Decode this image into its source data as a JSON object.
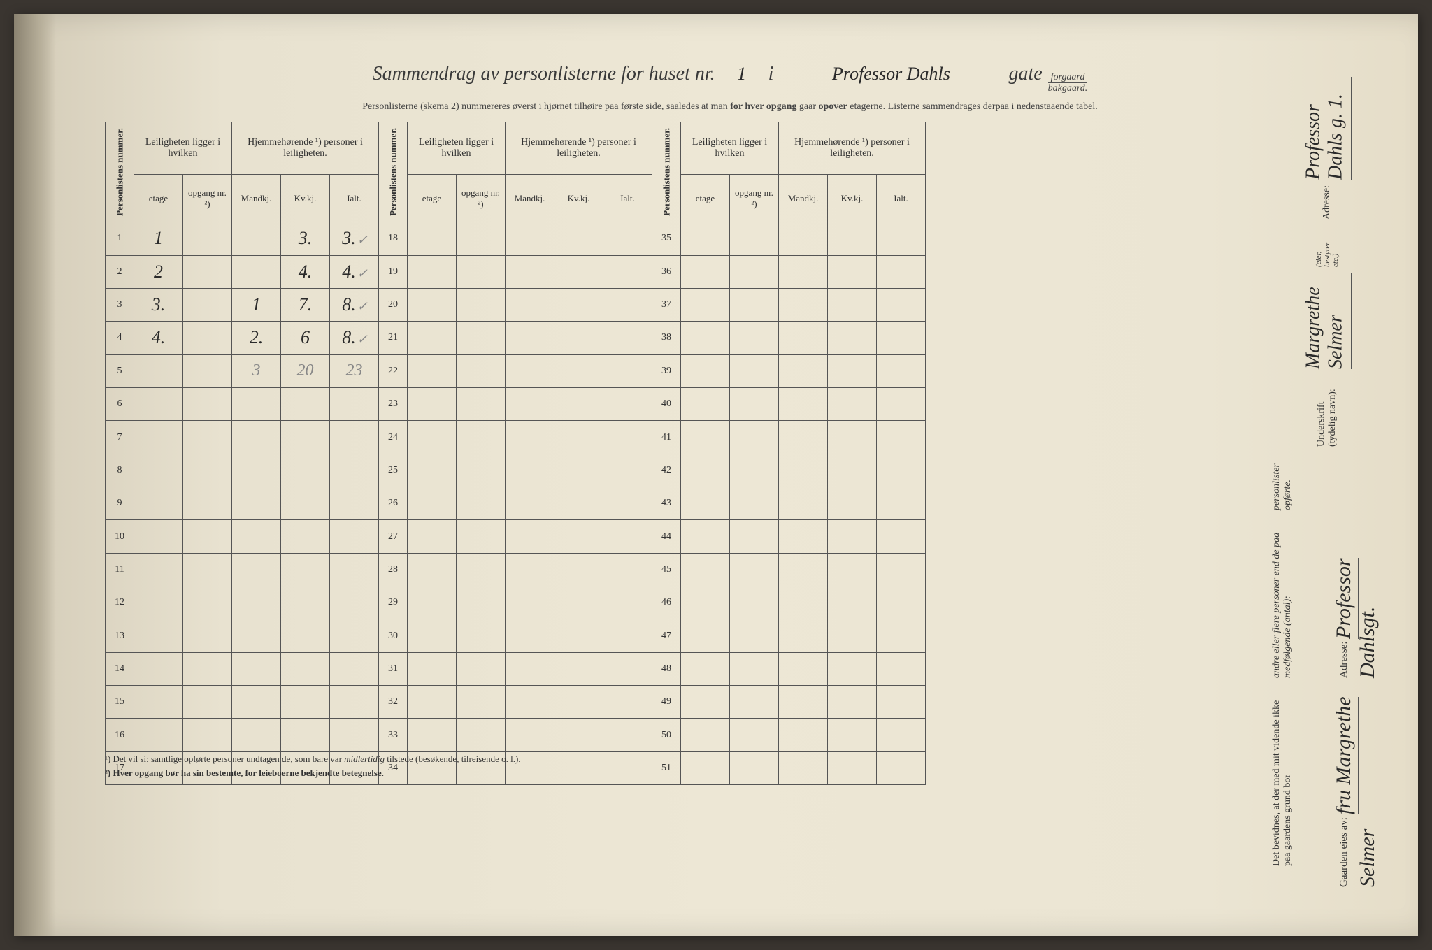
{
  "header": {
    "title_prefix": "Sammendrag av personlisterne for huset nr.",
    "house_nr": "1",
    "i": "i",
    "street_name": "Professor Dahls",
    "gate": "gate",
    "forgaard": "forgaard",
    "bakgaard": "bakgaard.",
    "subtitle_a": "Personlisterne (skema 2) nummereres øverst i hjørnet tilhøire paa første side, saaledes at man ",
    "subtitle_b": "for hver opgang",
    "subtitle_c": " gaar ",
    "subtitle_d": "opover",
    "subtitle_e": " etagerne.  Listerne sammendrages derpaa i nedenstaaende tabel."
  },
  "table_headers": {
    "personlistens": "Personlistens nummer.",
    "leiligheten": "Leiligheten ligger i hvilken",
    "hjemmehorende": "Hjemmehørende ¹) personer i leiligheten.",
    "etage": "etage",
    "opgang": "opgang nr. ²)",
    "mandkj": "Mandkj.",
    "kvkj": "Kv.kj.",
    "ialt": "Ialt."
  },
  "rows_block1": [
    {
      "n": "1",
      "etage": "1",
      "opgang": "",
      "m": "",
      "k": "3.",
      "i": "3.",
      "chk": "✓"
    },
    {
      "n": "2",
      "etage": "2",
      "opgang": "",
      "m": "",
      "k": "4.",
      "i": "4.",
      "chk": "✓"
    },
    {
      "n": "3",
      "etage": "3.",
      "opgang": "",
      "m": "1",
      "k": "7.",
      "i": "8.",
      "chk": "✓"
    },
    {
      "n": "4",
      "etage": "4.",
      "opgang": "",
      "m": "2.",
      "k": "6",
      "i": "8.",
      "chk": "✓"
    },
    {
      "n": "5",
      "etage": "",
      "opgang": "",
      "m": "3",
      "k": "20",
      "i": "23",
      "chk": "",
      "pencil": true
    },
    {
      "n": "6"
    },
    {
      "n": "7"
    },
    {
      "n": "8"
    },
    {
      "n": "9"
    },
    {
      "n": "10"
    },
    {
      "n": "11"
    },
    {
      "n": "12"
    },
    {
      "n": "13"
    },
    {
      "n": "14"
    },
    {
      "n": "15"
    },
    {
      "n": "16"
    },
    {
      "n": "17"
    }
  ],
  "rows_block2": [
    "18",
    "19",
    "20",
    "21",
    "22",
    "23",
    "24",
    "25",
    "26",
    "27",
    "28",
    "29",
    "30",
    "31",
    "32",
    "33",
    "34"
  ],
  "rows_block3": [
    "35",
    "36",
    "37",
    "38",
    "39",
    "40",
    "41",
    "42",
    "43",
    "44",
    "45",
    "46",
    "47",
    "48",
    "49",
    "50",
    "51"
  ],
  "footnotes": {
    "f1": "¹) Det vil si: samtlige opførte personer undtagen de, som bare var ",
    "f1_italic": "midlertidig",
    "f1_end": " tilstede (besøkende, tilreisende o. l.).",
    "f2": "²) Hver opgang bør ha sin bestemte, for leieboerne bekjendte betegnelse."
  },
  "right_panel": {
    "attest_a": "Det bevidnes, at der med mit vidende ikke paa gaardens grund bor",
    "attest_b": "andre eller flere personer end de paa medfølgende (antal):",
    "attest_c": "personlister opførte.",
    "underskrift_label": "Underskrift (tydelig navn):",
    "underskrift_value": "Margrethe Selmer",
    "underskrift_note": "(eier, bestyrer etc.)",
    "adresse_label": "Adresse:",
    "adresse_value": "Professor Dahls g. 1."
  },
  "owner": {
    "label": "Gaarden eies av:",
    "name": "fru Margrethe Selmer",
    "adresse_label": "Adresse:",
    "adresse_value": "Professor Dahlsgt."
  }
}
